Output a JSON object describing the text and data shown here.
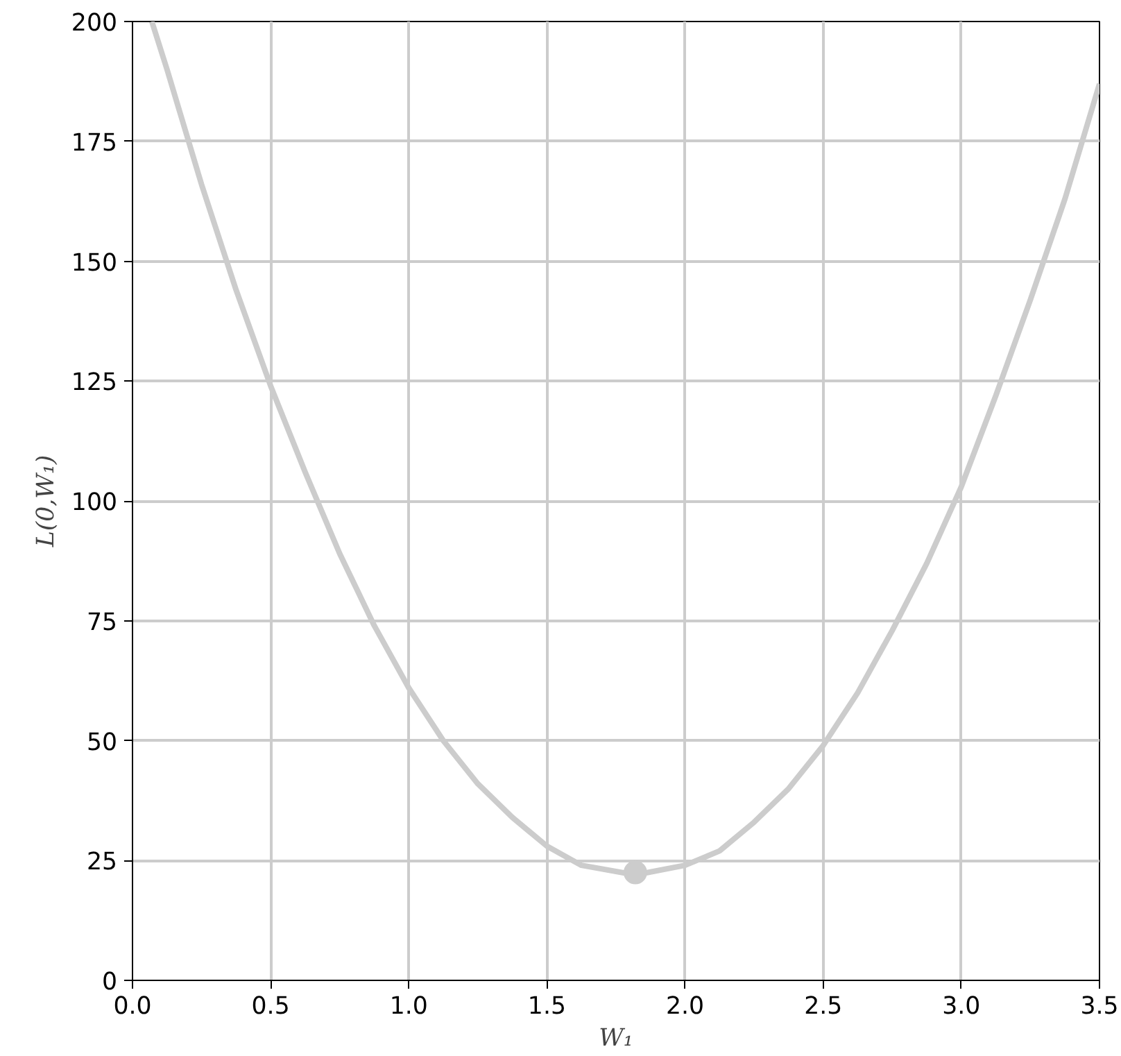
{
  "chart_data": {
    "type": "line",
    "xlabel": "W₁",
    "ylabel": "L(0,W₁)",
    "series": [
      {
        "color": "#cccccc",
        "x": [
          0.07,
          0.125,
          0.25,
          0.375,
          0.5,
          0.625,
          0.75,
          0.875,
          1.0,
          1.125,
          1.25,
          1.375,
          1.5,
          1.625,
          1.82,
          2.0,
          2.125,
          2.25,
          2.375,
          2.5,
          2.625,
          2.75,
          2.875,
          3.0,
          3.125,
          3.25,
          3.375,
          3.5
        ],
        "values": [
          200,
          190,
          166,
          144,
          124,
          106,
          89,
          74,
          61,
          50,
          41,
          34,
          28,
          24,
          22,
          24,
          27,
          33,
          40,
          49,
          60,
          73,
          87,
          103,
          122,
          142,
          163,
          187
        ]
      },
      {
        "type": "scatter",
        "color": "#cccccc",
        "marker": "circle",
        "x": [
          1.82
        ],
        "values": [
          22.5
        ]
      }
    ],
    "xlim": [
      0,
      3.5
    ],
    "ylim": [
      0,
      200
    ],
    "xticks": [
      {
        "value": 0,
        "label": "0.0"
      },
      {
        "value": 0.5,
        "label": "0.5"
      },
      {
        "value": 1,
        "label": "1.0"
      },
      {
        "value": 1.5,
        "label": "1.5"
      },
      {
        "value": 2,
        "label": "2.0"
      },
      {
        "value": 2.5,
        "label": "2.5"
      },
      {
        "value": 3,
        "label": "3.0"
      },
      {
        "value": 3.5,
        "label": "3.5"
      }
    ],
    "yticks": [
      0,
      25,
      50,
      75,
      100,
      125,
      150,
      175,
      200
    ],
    "grid": true
  }
}
